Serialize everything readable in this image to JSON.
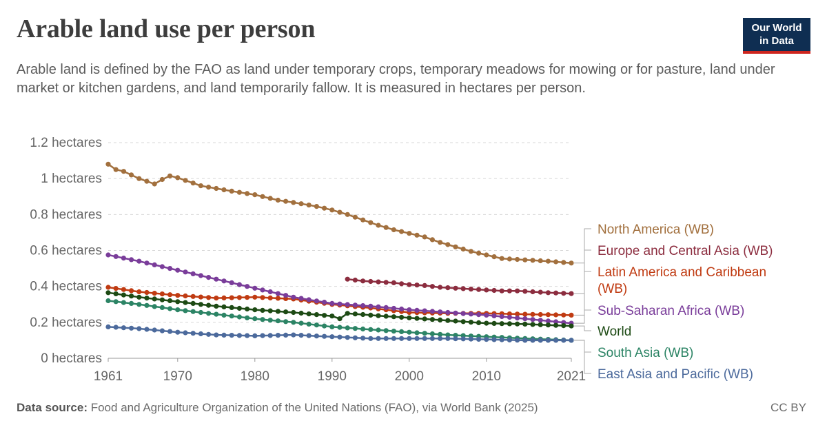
{
  "header": {
    "title": "Arable land use per person",
    "subtitle": "Arable land is defined by the FAO as land under temporary crops, temporary meadows for mowing or for pasture, land under market or kitchen gardens, and land temporarily fallow. It is measured in hectares per person."
  },
  "logo": {
    "line1": "Our World",
    "line2": "in Data",
    "bg_color": "#0f2e52",
    "accent_color": "#ce261e"
  },
  "footer": {
    "source_label": "Data source:",
    "source_text": "Food and Agriculture Organization of the United Nations (FAO), via World Bank (2025)",
    "license": "CC BY"
  },
  "chart_data": {
    "type": "line",
    "x_range": [
      1961,
      2021
    ],
    "ylim": [
      0,
      1.2
    ],
    "y_ticks": [
      {
        "value": 0,
        "label": "0 hectares"
      },
      {
        "value": 0.2,
        "label": "0.2 hectares"
      },
      {
        "value": 0.4,
        "label": "0.4 hectares"
      },
      {
        "value": 0.6,
        "label": "0.6 hectares"
      },
      {
        "value": 0.8,
        "label": "0.8 hectares"
      },
      {
        "value": 1,
        "label": "1 hectares"
      },
      {
        "value": 1.2,
        "label": "1.2 hectares"
      }
    ],
    "x_ticks": [
      {
        "value": 1961,
        "label": "1961"
      },
      {
        "value": 1970,
        "label": "1970"
      },
      {
        "value": 1980,
        "label": "1980"
      },
      {
        "value": 1990,
        "label": "1990"
      },
      {
        "value": 2000,
        "label": "2000"
      },
      {
        "value": 2010,
        "label": "2010"
      },
      {
        "value": 2021,
        "label": "2021"
      }
    ],
    "grid": "horizontal dashed",
    "legend": "line-end labels, right",
    "series": [
      {
        "name": "North America (WB)",
        "color": "#a2703e",
        "points": [
          [
            1961,
            1.08
          ],
          [
            1962,
            1.05
          ],
          [
            1963,
            1.04
          ],
          [
            1964,
            1.02
          ],
          [
            1965,
            1.0
          ],
          [
            1966,
            0.985
          ],
          [
            1967,
            0.97
          ],
          [
            1968,
            0.995
          ],
          [
            1969,
            1.015
          ],
          [
            1970,
            1.005
          ],
          [
            1971,
            0.99
          ],
          [
            1972,
            0.975
          ],
          [
            1973,
            0.96
          ],
          [
            1975,
            0.945
          ],
          [
            1977,
            0.93
          ],
          [
            1980,
            0.91
          ],
          [
            1983,
            0.88
          ],
          [
            1986,
            0.86
          ],
          [
            1988,
            0.845
          ],
          [
            1990,
            0.825
          ],
          [
            1992,
            0.8
          ],
          [
            1994,
            0.77
          ],
          [
            1996,
            0.74
          ],
          [
            1998,
            0.715
          ],
          [
            2000,
            0.695
          ],
          [
            2002,
            0.675
          ],
          [
            2004,
            0.645
          ],
          [
            2006,
            0.62
          ],
          [
            2008,
            0.595
          ],
          [
            2010,
            0.575
          ],
          [
            2012,
            0.555
          ],
          [
            2014,
            0.55
          ],
          [
            2016,
            0.545
          ],
          [
            2018,
            0.54
          ],
          [
            2021,
            0.53
          ]
        ]
      },
      {
        "name": "Europe and Central Asia (WB)",
        "color": "#8c2d3f",
        "points": [
          [
            1992,
            0.44
          ],
          [
            1994,
            0.43
          ],
          [
            1996,
            0.425
          ],
          [
            1998,
            0.42
          ],
          [
            2000,
            0.41
          ],
          [
            2002,
            0.405
          ],
          [
            2004,
            0.395
          ],
          [
            2006,
            0.39
          ],
          [
            2008,
            0.385
          ],
          [
            2010,
            0.38
          ],
          [
            2012,
            0.375
          ],
          [
            2014,
            0.375
          ],
          [
            2016,
            0.37
          ],
          [
            2018,
            0.365
          ],
          [
            2021,
            0.36
          ]
        ]
      },
      {
        "name": "Latin America and Caribbean (WB)",
        "color": "#c03b12",
        "points": [
          [
            1961,
            0.395
          ],
          [
            1965,
            0.37
          ],
          [
            1970,
            0.35
          ],
          [
            1975,
            0.335
          ],
          [
            1980,
            0.34
          ],
          [
            1985,
            0.33
          ],
          [
            1990,
            0.3
          ],
          [
            1995,
            0.28
          ],
          [
            2000,
            0.255
          ],
          [
            2005,
            0.25
          ],
          [
            2010,
            0.25
          ],
          [
            2015,
            0.245
          ],
          [
            2021,
            0.24
          ]
        ]
      },
      {
        "name": "Sub-Saharan Africa (WB)",
        "color": "#7a3d9a",
        "points": [
          [
            1961,
            0.575
          ],
          [
            1965,
            0.54
          ],
          [
            1970,
            0.49
          ],
          [
            1975,
            0.44
          ],
          [
            1980,
            0.39
          ],
          [
            1985,
            0.34
          ],
          [
            1990,
            0.305
          ],
          [
            1995,
            0.29
          ],
          [
            2000,
            0.27
          ],
          [
            2005,
            0.255
          ],
          [
            2010,
            0.24
          ],
          [
            2015,
            0.22
          ],
          [
            2021,
            0.195
          ]
        ]
      },
      {
        "name": "World",
        "color": "#1d4a14",
        "points": [
          [
            1961,
            0.365
          ],
          [
            1965,
            0.34
          ],
          [
            1970,
            0.315
          ],
          [
            1975,
            0.29
          ],
          [
            1980,
            0.27
          ],
          [
            1985,
            0.255
          ],
          [
            1990,
            0.235
          ],
          [
            1991,
            0.22
          ],
          [
            1992,
            0.25
          ],
          [
            1995,
            0.24
          ],
          [
            2000,
            0.225
          ],
          [
            2005,
            0.21
          ],
          [
            2010,
            0.195
          ],
          [
            2015,
            0.19
          ],
          [
            2021,
            0.18
          ]
        ]
      },
      {
        "name": "South Asia (WB)",
        "color": "#2c8465",
        "points": [
          [
            1961,
            0.32
          ],
          [
            1965,
            0.3
          ],
          [
            1970,
            0.27
          ],
          [
            1975,
            0.245
          ],
          [
            1980,
            0.22
          ],
          [
            1985,
            0.2
          ],
          [
            1990,
            0.175
          ],
          [
            1995,
            0.16
          ],
          [
            2000,
            0.145
          ],
          [
            2005,
            0.13
          ],
          [
            2010,
            0.12
          ],
          [
            2015,
            0.11
          ],
          [
            2021,
            0.1
          ]
        ]
      },
      {
        "name": "East Asia and Pacific (WB)",
        "color": "#4c6a9c",
        "points": [
          [
            1961,
            0.175
          ],
          [
            1965,
            0.165
          ],
          [
            1970,
            0.145
          ],
          [
            1975,
            0.13
          ],
          [
            1980,
            0.125
          ],
          [
            1985,
            0.13
          ],
          [
            1990,
            0.12
          ],
          [
            1995,
            0.11
          ],
          [
            2000,
            0.11
          ],
          [
            2005,
            0.11
          ],
          [
            2010,
            0.105
          ],
          [
            2015,
            0.1
          ],
          [
            2021,
            0.1
          ]
        ]
      }
    ]
  }
}
